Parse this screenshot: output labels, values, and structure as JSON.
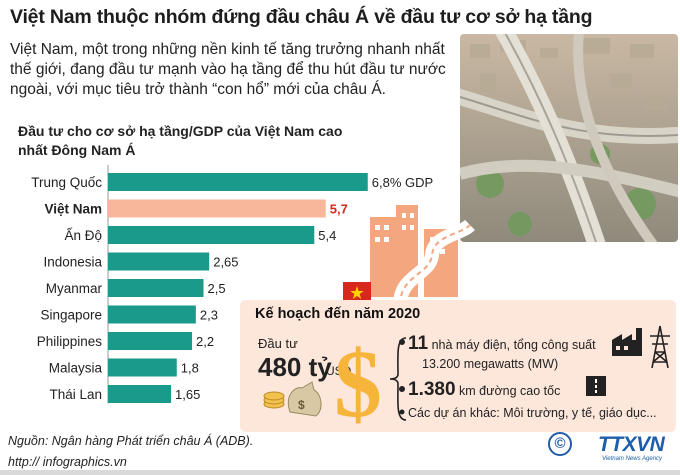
{
  "header": {
    "title": "Việt Nam thuộc nhóm đứng đầu châu Á về đầu tư cơ sở hạ tầng",
    "intro": "Việt Nam, một trong những nền kinh tế tăng trưởng nhanh nhất thế giới, đang đầu tư mạnh vào hạ tầng để thu hút đầu tư nước ngoài, với mục tiêu trở thành “con hổ” mới của châu Á."
  },
  "chart_data": {
    "type": "bar",
    "orientation": "horizontal",
    "title": "Đầu tư cho cơ sở hạ tầng/GDP của Việt Nam cao nhất Đông Nam Á",
    "categories": [
      "Trung Quốc",
      "Việt Nam",
      "Ấn Độ",
      "Indonesia",
      "Myanmar",
      "Singapore",
      "Philippines",
      "Malaysia",
      "Thái Lan"
    ],
    "values": [
      6.8,
      5.7,
      5.4,
      2.65,
      2.5,
      2.3,
      2.2,
      1.8,
      1.65
    ],
    "value_labels": [
      "6,8% GDP",
      "5,7",
      "5,4",
      "2,65",
      "2,5",
      "2,3",
      "2,2",
      "1,8",
      "1,65"
    ],
    "highlight": "Việt Nam",
    "colors": {
      "bar": "#1a9a8a",
      "highlight": "#f8b79a",
      "highlight_text": "#d8271c"
    }
  },
  "plan": {
    "title": "Kế hoạch đến năm 2020",
    "invest_label": "Đầu tư",
    "invest_value": "480 tỷ",
    "invest_unit": "USD",
    "item1_number": "11",
    "item1_text": "nhà máy điện, tổng công suất",
    "item1_text2": "13.200 megawatts (MW)",
    "item2_number": "1.380",
    "item2_text": "km đường cao tốc",
    "item3_text": "Các dự án khác: Môi trường, y tế, giáo dục..."
  },
  "footer": {
    "source": "Nguồn: Ngân hàng Phát triển châu Á (ADB).",
    "site": "http:// infographics.vn",
    "logo": "TTXVN",
    "logo_sub": "Vietnam News Agency",
    "copyright_symbol": "©"
  },
  "colors": {
    "accent": "#f4a77f",
    "teal": "#1a9a8a",
    "red": "#d8271c",
    "plan_bg": "#fde7db"
  }
}
